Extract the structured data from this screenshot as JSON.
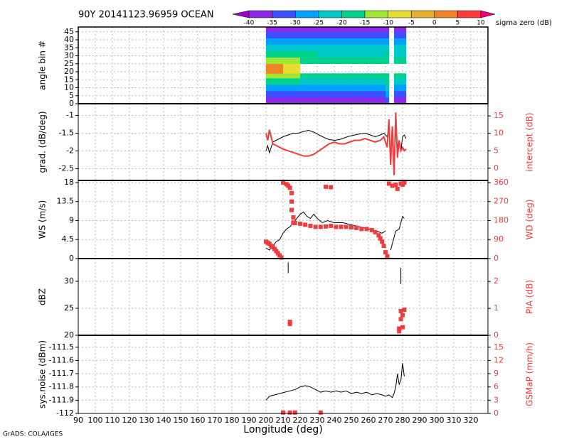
{
  "chart_data": {
    "type": "panel-stack",
    "title": "90Y 20141123.96959 OCEAN",
    "footer": "GrADS: COLA/IGES",
    "xlabel": "Longitude (deg)",
    "xlim": [
      90,
      330
    ],
    "xticks": [
      90,
      100,
      110,
      120,
      130,
      140,
      150,
      160,
      170,
      180,
      190,
      200,
      210,
      220,
      230,
      240,
      250,
      260,
      270,
      280,
      290,
      300,
      310,
      320
    ],
    "grid": true,
    "colorbar": {
      "label": "sigma zero (dB)",
      "levels": [
        -40,
        -35,
        -30,
        -25,
        -20,
        -15,
        -10,
        -5,
        0,
        5,
        10
      ],
      "colors": [
        "#a000c8",
        "#8c28e6",
        "#3c50ff",
        "#00a0ff",
        "#00c8c8",
        "#00d28c",
        "#a0e632",
        "#e6dc32",
        "#e6af2d",
        "#f08228",
        "#fa3c3c",
        "#f00082"
      ]
    },
    "panels": [
      {
        "type": "heatmap",
        "ylabel": "angle bin #",
        "ylim": [
          0,
          48
        ],
        "yticks": [
          0,
          5,
          10,
          15,
          20,
          25,
          30,
          35,
          40,
          45
        ],
        "x_edges": [
          200,
          210,
          220,
          230,
          240,
          250,
          260,
          270,
          272,
          275,
          278,
          282
        ],
        "y_edges": [
          0,
          4,
          8,
          12,
          16,
          19,
          25,
          29,
          33,
          37,
          41,
          45,
          48
        ],
        "values": [
          [
            -37,
            -37,
            -36,
            -36,
            -36,
            -36,
            -37,
            -35,
            null,
            -37,
            -36
          ],
          [
            -32,
            -32,
            -31,
            -31,
            -32,
            -32,
            -32,
            -30,
            null,
            -31,
            -32
          ],
          [
            -27,
            -27,
            -26,
            -26,
            -27,
            -27,
            -27,
            -25,
            null,
            -26,
            -27
          ],
          [
            -18,
            -19,
            -21,
            -21,
            -22,
            -22,
            -22,
            -20,
            null,
            -21,
            -22
          ],
          [
            -13,
            -14,
            -16,
            -17,
            -18,
            -18,
            -18,
            -16,
            null,
            -17,
            -18
          ],
          [
            2,
            -6,
            null,
            null,
            null,
            null,
            null,
            null,
            null,
            null,
            null
          ],
          [
            -12,
            -14,
            -16,
            -17,
            -17,
            -17,
            -18,
            -16,
            null,
            -17,
            -18
          ],
          [
            -18,
            -19,
            -20,
            -21,
            -21,
            -21,
            -22,
            -20,
            null,
            -21,
            -22
          ],
          [
            -23,
            -23,
            -24,
            -24,
            -25,
            -25,
            -25,
            -23,
            null,
            -24,
            -25
          ],
          [
            -28,
            -28,
            -29,
            -29,
            -29,
            -29,
            -30,
            -28,
            null,
            -29,
            -30
          ],
          [
            -33,
            -33,
            -33,
            -33,
            -34,
            -34,
            -34,
            -32,
            null,
            -33,
            -34
          ],
          [
            -37,
            -37,
            -37,
            -37,
            -37,
            -37,
            -37,
            -36,
            null,
            -37,
            -37
          ]
        ]
      },
      {
        "type": "line",
        "ylabel": "grad. (dB/deg)",
        "ylim": [
          -2.83,
          -0.67
        ],
        "yticks": [
          -2.5,
          -2,
          -1.5,
          -1
        ],
        "y2label": "intercept (dB)",
        "y2lim": [
          -3.5,
          18.5
        ],
        "y2ticks": [
          0,
          5,
          10,
          15
        ],
        "series": [
          {
            "type": "line",
            "color": "#000000",
            "x": [
              200,
              201,
              202,
              204,
              206,
              208,
              210,
              213,
              216,
              219,
              222,
              225,
              228,
              231,
              234,
              237,
              240,
              243,
              246,
              249,
              252,
              255,
              258,
              261,
              264,
              267,
              269,
              271,
              272,
              273,
              274,
              275,
              276,
              277,
              278,
              279,
              280,
              281,
              282
            ],
            "values": [
              -2.0,
              -1.85,
              -2.05,
              -1.75,
              -1.7,
              -1.65,
              -1.6,
              -1.55,
              -1.5,
              -1.5,
              -1.45,
              -1.42,
              -1.47,
              -1.55,
              -1.62,
              -1.68,
              -1.7,
              -1.68,
              -1.63,
              -1.58,
              -1.55,
              -1.52,
              -1.5,
              -1.55,
              -1.6,
              -1.55,
              -1.5,
              -1.6,
              -1.3,
              -2.2,
              -1.5,
              -2.6,
              -1.4,
              -1.9,
              -1.7,
              -2.0,
              -1.6,
              -1.55,
              -1.65
            ]
          },
          {
            "type": "line",
            "axis": "y2",
            "color": "#f03c3c",
            "x": [
              200,
              201,
              202,
              204,
              206,
              208,
              210,
              213,
              216,
              219,
              222,
              225,
              228,
              231,
              234,
              237,
              240,
              243,
              246,
              249,
              252,
              255,
              258,
              261,
              264,
              267,
              269,
              271,
              272,
              273,
              274,
              275,
              276,
              277,
              278,
              279,
              280,
              281,
              282
            ],
            "values": [
              10,
              8,
              11,
              7,
              6.5,
              6,
              5.5,
              5,
              4.5,
              4,
              3.5,
              3.5,
              4,
              5,
              6,
              7,
              7.5,
              7,
              7,
              7.5,
              8,
              8,
              8.5,
              8,
              7.5,
              8,
              9,
              6,
              14,
              1,
              12,
              -2,
              16,
              3,
              8,
              5,
              6,
              5,
              5.5
            ]
          }
        ]
      },
      {
        "type": "line",
        "ylabel": "WS (m/s)",
        "ylim": [
          0,
          18.5
        ],
        "yticks": [
          0,
          4.5,
          9,
          13.5,
          18
        ],
        "y2label": "WD (deg)",
        "y2lim": [
          0,
          370
        ],
        "y2ticks": [
          0,
          90,
          180,
          270,
          360
        ],
        "series": [
          {
            "type": "line",
            "color": "#000000",
            "x": [
              200,
              202,
              204,
              206,
              208,
              210,
              212,
              214,
              216,
              218,
              220,
              222,
              224,
              226,
              228,
              230,
              233,
              236,
              240,
              245,
              250,
              255,
              260,
              265,
              268,
              270,
              272,
              273,
              275,
              276,
              278,
              280,
              281
            ],
            "values": [
              2.5,
              2,
              3,
              4,
              4.5,
              6,
              7,
              7.5,
              8.5,
              9.5,
              10.5,
              11,
              10,
              9.5,
              10.5,
              9.5,
              8.5,
              9,
              8.5,
              8.5,
              8,
              7.5,
              7,
              6.5,
              6,
              6.5,
              null,
              2,
              5,
              6.5,
              7,
              10,
              9.5
            ]
          },
          {
            "type": "scatter",
            "axis": "y2",
            "color": "#f03c3c",
            "x": [
              200,
              201,
              202,
              203,
              204,
              205,
              206,
              207,
              208,
              209,
              210,
              212,
              213,
              214,
              215,
              215,
              215,
              216,
              216,
              217,
              220,
              223,
              226,
              229,
              232,
              235,
              238,
              241,
              244,
              247,
              250,
              253,
              256,
              259,
              262,
              264,
              266,
              267,
              268,
              269,
              270,
              271,
              272,
              274,
              276,
              277,
              279,
              280,
              281,
              235,
              238
            ],
            "values": [
              80,
              75,
              70,
              60,
              55,
              45,
              35,
              25,
              15,
              5,
              360,
              352,
              345,
              335,
              310,
              270,
              230,
              195,
              170,
              168,
              165,
              160,
              155,
              150,
              150,
              152,
              155,
              150,
              150,
              150,
              148,
              145,
              140,
              140,
              135,
              125,
              110,
              95,
              80,
              60,
              30,
              10,
              355,
              345,
              350,
              330,
              355,
              350,
              360,
              340,
              338
            ]
          }
        ]
      },
      {
        "type": "line",
        "ylabel": "dBZ",
        "ylim": [
          20,
          34.2
        ],
        "yticks": [
          20,
          25,
          30
        ],
        "y2label": "PIA (dB)",
        "y2lim": [
          0,
          2.85
        ],
        "y2ticks": [
          0,
          1,
          2
        ],
        "series": [
          {
            "type": "line",
            "color": "#000000",
            "x": [
              213,
              213,
              214,
              279,
              279
            ],
            "values": [
              33.5,
              31.5,
              null,
              32.5,
              29.5
            ]
          },
          {
            "type": "scatter",
            "axis": "y2",
            "color": "#f03c3c",
            "x": [
              214,
              214,
              278,
              279,
              279,
              280,
              280,
              281,
              278
            ],
            "values": [
              0.5,
              0.42,
              0.25,
              0.9,
              0.6,
              0.3,
              0.75,
              0.95,
              0.15
            ]
          }
        ]
      },
      {
        "type": "line",
        "ylabel": "sys.noise (dBm)",
        "ylim": [
          -112,
          -111.41
        ],
        "yticks": [
          -112,
          -111.9,
          -111.8,
          -111.7,
          -111.6,
          -111.5
        ],
        "y2label": "GSMaP (mm/h)",
        "y2lim": [
          0,
          17.7
        ],
        "y2ticks": [
          0,
          3,
          6,
          9,
          12,
          15
        ],
        "series": [
          {
            "type": "line",
            "color": "#000000",
            "x": [
              200,
              202,
              205,
              208,
              211,
              214,
              217,
              220,
              223,
              226,
              229,
              232,
              235,
              238,
              241,
              244,
              247,
              250,
              253,
              256,
              259,
              262,
              265,
              268,
              270,
              272,
              274,
              275,
              276,
              277,
              278,
              279,
              280,
              281
            ],
            "values": [
              -111.9,
              -111.87,
              -111.86,
              -111.85,
              -111.84,
              -111.83,
              -111.82,
              -111.8,
              -111.79,
              -111.8,
              -111.82,
              -111.84,
              -111.83,
              -111.84,
              -111.83,
              -111.84,
              -111.83,
              -111.85,
              -111.84,
              -111.85,
              -111.84,
              -111.86,
              -111.85,
              -111.86,
              -111.87,
              -111.86,
              -111.88,
              -111.85,
              -111.8,
              -111.7,
              -111.78,
              -111.75,
              -111.62,
              -111.72
            ]
          },
          {
            "type": "scatter",
            "axis": "y2",
            "color": "#f03c3c",
            "x": [
              210,
              214,
              217,
              232
            ],
            "values": [
              0.2,
              0.2,
              0.2,
              0.2
            ]
          }
        ]
      }
    ]
  }
}
